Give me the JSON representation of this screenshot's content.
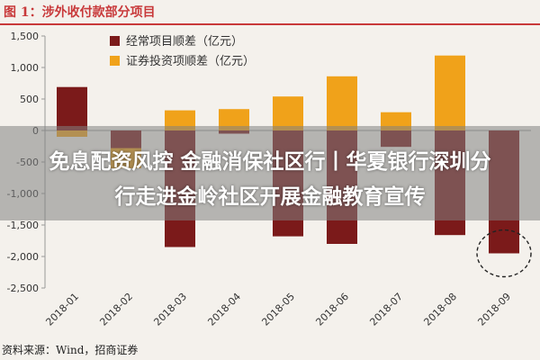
{
  "figure_title": "图 1：涉外收付款部分项目",
  "source": "资料来源：Wind，招商证券",
  "headline": {
    "line1": "免息配资风控 金融消保社区行丨华夏银行深圳分",
    "line2": "行走进金岭社区开展金融教育宣传"
  },
  "chart_data": {
    "type": "bar",
    "categories": [
      "2018-01",
      "2018-02",
      "2018-03",
      "2018-04",
      "2018-05",
      "2018-06",
      "2018-07",
      "2018-08",
      "2018-09"
    ],
    "series": [
      {
        "name": "经常项目顺差（亿元）",
        "color": "#7b1a1a",
        "values": [
          690,
          -280,
          -1850,
          -50,
          -1680,
          -1800,
          -260,
          -1660,
          -1950
        ]
      },
      {
        "name": "证券投资项顺差（亿元）",
        "color": "#f0a21a",
        "values": [
          -100,
          -600,
          320,
          340,
          540,
          860,
          290,
          1190,
          -1900
        ]
      }
    ],
    "ylim": [
      -2500,
      1500
    ],
    "yticks": [
      "1,500",
      "1,000",
      "500",
      "0",
      "-500",
      "-1,000",
      "-1,500",
      "-2,000",
      "-2,500"
    ],
    "ytick_values": [
      1500,
      1000,
      500,
      0,
      -500,
      -1000,
      -1500,
      -2000,
      -2500
    ],
    "legend_position": "top-center",
    "annotation": "dashed circle highlighting 2018-09"
  }
}
